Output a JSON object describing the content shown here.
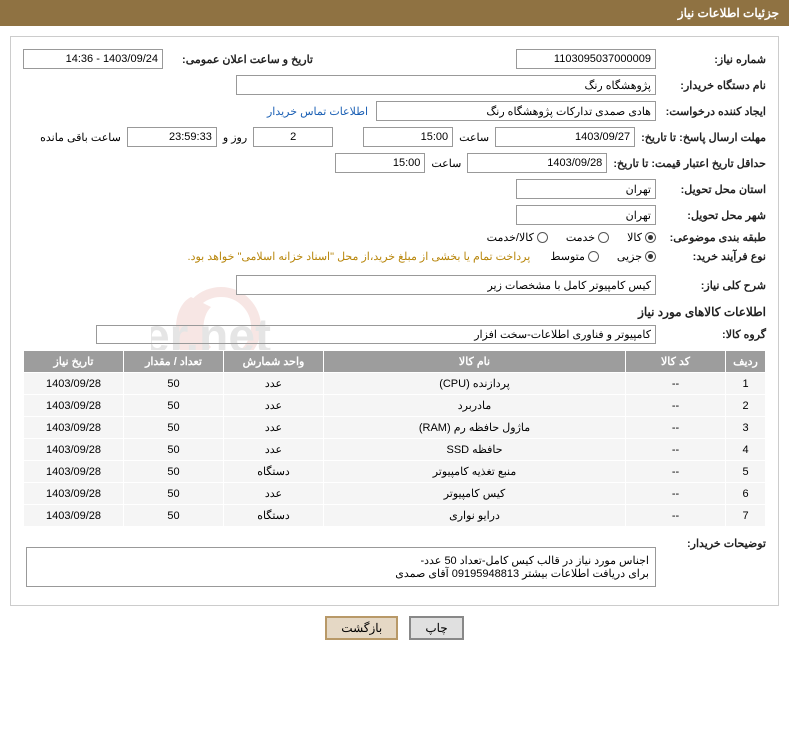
{
  "header": {
    "title": "جزئیات اطلاعات نیاز"
  },
  "fields": {
    "need_no_label": "شماره نیاز:",
    "need_no": "1103095037000009",
    "announce_label": "تاریخ و ساعت اعلان عمومی:",
    "announce_value": "1403/09/24 - 14:36",
    "buyer_org_label": "نام دستگاه خریدار:",
    "buyer_org": "پژوهشگاه رنگ",
    "requester_label": "ایجاد کننده درخواست:",
    "requester": "هادی صمدی تدارکات پژوهشگاه رنگ",
    "contact_link": "اطلاعات تماس خریدار",
    "deadline_label": "مهلت ارسال پاسخ: تا تاریخ:",
    "deadline_date": "1403/09/27",
    "time_lbl": "ساعت",
    "deadline_time": "15:00",
    "days": "2",
    "days_lbl": "روز و",
    "countdown": "23:59:33",
    "remain_lbl": "ساعت باقی مانده",
    "validity_label": "حداقل تاریخ اعتبار قیمت: تا تاریخ:",
    "validity_date": "1403/09/28",
    "validity_time": "15:00",
    "province_label": "استان محل تحویل:",
    "province": "تهران",
    "city_label": "شهر محل تحویل:",
    "city": "تهران",
    "category_label": "طبقه بندی موضوعی:",
    "cat_goods": "کالا",
    "cat_service": "خدمت",
    "cat_gs": "کالا/خدمت",
    "process_label": "نوع فرآیند خرید:",
    "proc_partial": "جزیی",
    "proc_medium": "متوسط",
    "pay_note": "پرداخت تمام یا بخشی از مبلغ خرید،از محل \"اسناد خزانه اسلامی\" خواهد بود.",
    "summary_label": "شرح کلی نیاز:",
    "summary": "کیس کامپیوتر کامل با مشخصات زیر",
    "goods_section": "اطلاعات کالاهای مورد نیاز",
    "group_label": "گروه کالا:",
    "group_value": "کامپیوتر و فناوری اطلاعات-سخت افزار",
    "desc_label": "توضیحات خریدار:",
    "desc_line1": "اجناس مورد نیاز در قالب کیس کامل-تعداد 50 عدد-",
    "desc_line2": "برای دریافت اطلاعات بیشتر 09195948813 آقای صمدی"
  },
  "table": {
    "headers": {
      "row": "ردیف",
      "code": "کد کالا",
      "name": "نام کالا",
      "unit": "واحد شمارش",
      "qty": "تعداد / مقدار",
      "date": "تاریخ نیاز"
    },
    "rows": [
      {
        "row": "1",
        "code": "--",
        "name": "پردازنده (CPU)",
        "unit": "عدد",
        "qty": "50",
        "date": "1403/09/28"
      },
      {
        "row": "2",
        "code": "--",
        "name": "مادربرد",
        "unit": "عدد",
        "qty": "50",
        "date": "1403/09/28"
      },
      {
        "row": "3",
        "code": "--",
        "name": "ماژول حافظه رم (RAM)",
        "unit": "عدد",
        "qty": "50",
        "date": "1403/09/28"
      },
      {
        "row": "4",
        "code": "--",
        "name": "حافظه SSD",
        "unit": "عدد",
        "qty": "50",
        "date": "1403/09/28"
      },
      {
        "row": "5",
        "code": "--",
        "name": "منبع تغذیه کامپیوتر",
        "unit": "دستگاه",
        "qty": "50",
        "date": "1403/09/28"
      },
      {
        "row": "6",
        "code": "--",
        "name": "کیس کامپیوتر",
        "unit": "عدد",
        "qty": "50",
        "date": "1403/09/28"
      },
      {
        "row": "7",
        "code": "--",
        "name": "درایو نواری",
        "unit": "دستگاه",
        "qty": "50",
        "date": "1403/09/28"
      }
    ]
  },
  "buttons": {
    "print": "چاپ",
    "back": "بازگشت"
  },
  "colors": {
    "header_bg": "#8f7242",
    "table_header_bg": "#9d9d9d",
    "link": "#1a5fb4",
    "note": "#b8860b"
  }
}
